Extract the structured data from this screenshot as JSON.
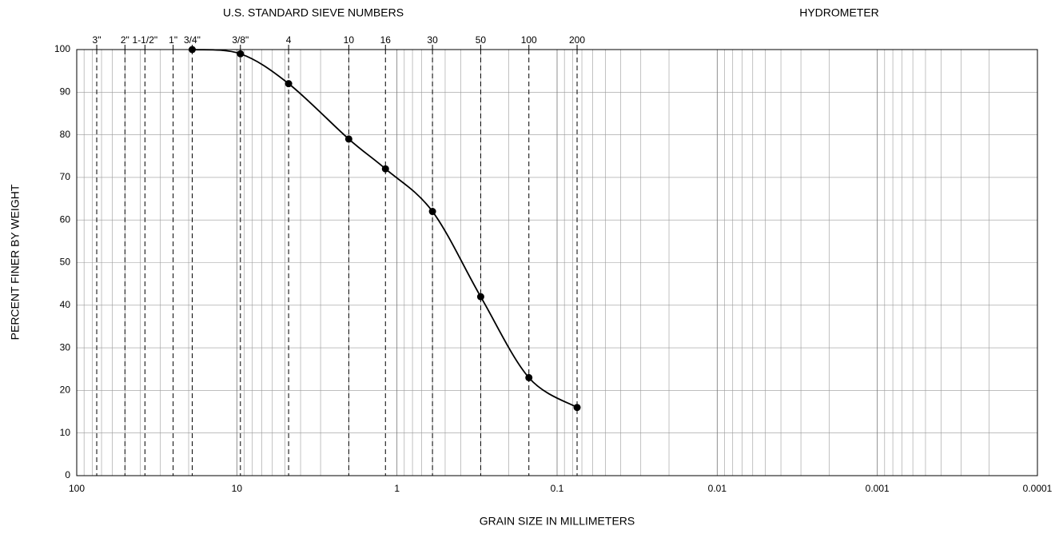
{
  "chart_data": {
    "type": "line",
    "title": "U.S. STANDARD SIEVE NUMBERS",
    "subtitle": "HYDROMETER",
    "x_label": "GRAIN SIZE IN MILLIMETERS",
    "y_label": "PERCENT FINER BY WEIGHT",
    "x_log": true,
    "x_reversed": true,
    "xlim": [
      100,
      0.0001
    ],
    "xticks": [
      100,
      10,
      1,
      0.1,
      0.01,
      0.001,
      0.0001
    ],
    "ylim": [
      0,
      100
    ],
    "yticks": [
      0,
      10,
      20,
      30,
      40,
      50,
      60,
      70,
      80,
      90,
      100
    ],
    "grid": true,
    "sieves": {
      "labels": [
        "3\"",
        "2\"",
        "1-1/2\"",
        "1\"",
        "3/4\"",
        "3/8\"",
        "4",
        "10",
        "16",
        "30",
        "50",
        "100",
        "200"
      ],
      "sizes": [
        75,
        50,
        37.5,
        25,
        19,
        9.5,
        4.75,
        2,
        1.18,
        0.6,
        0.3,
        0.15,
        0.075
      ]
    },
    "x": [
      19,
      9.5,
      4.75,
      2,
      1.18,
      0.6,
      0.3,
      0.15,
      0.075
    ],
    "series": [
      {
        "color": "#000000",
        "values": [
          100,
          99,
          92,
          79,
          72,
          62,
          42,
          23,
          16
        ]
      }
    ]
  }
}
